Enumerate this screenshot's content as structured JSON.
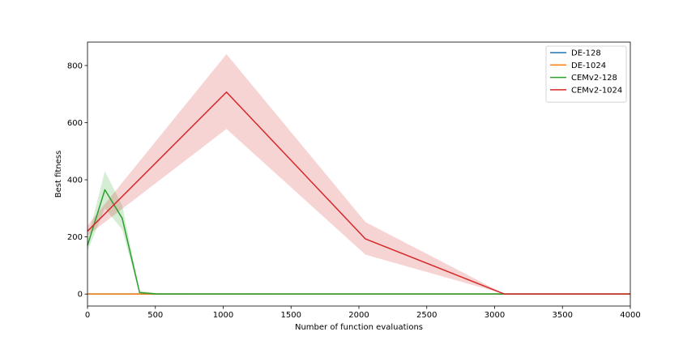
{
  "chart_data": {
    "type": "line",
    "title": "",
    "xlabel": "Number of function evaluations",
    "ylabel": "Best fitness",
    "xlim": [
      0,
      4000
    ],
    "ylim": [
      -42,
      882
    ],
    "xticks": [
      "0",
      "500",
      "1000",
      "1500",
      "2000",
      "2500",
      "3000",
      "3500",
      "4000"
    ],
    "yticks": [
      "0",
      "200",
      "400",
      "600",
      "800"
    ],
    "legend_position": "top-right",
    "grid": false,
    "series": [
      {
        "name": "DE-128",
        "color": "#1f77b4",
        "x": [
          0,
          4000
        ],
        "y": [
          0,
          0
        ],
        "lower": [
          0,
          0
        ],
        "upper": [
          0,
          0
        ]
      },
      {
        "name": "DE-1024",
        "color": "#ff7f0e",
        "x": [
          0,
          4000
        ],
        "y": [
          0,
          0
        ],
        "lower": [
          0,
          0
        ],
        "upper": [
          0,
          0
        ]
      },
      {
        "name": "CEMv2-128",
        "color": "#2ca02c",
        "x": [
          0,
          128,
          256,
          384,
          512,
          4000
        ],
        "y": [
          170,
          365,
          265,
          5,
          0,
          0
        ],
        "lower": [
          150,
          300,
          225,
          0,
          0,
          0
        ],
        "upper": [
          190,
          430,
          310,
          12,
          3,
          0
        ]
      },
      {
        "name": "CEMv2-1024",
        "color": "#d62728",
        "x": [
          0,
          1024,
          2048,
          3072,
          4000
        ],
        "y": [
          220,
          707,
          193,
          0,
          0
        ],
        "lower": [
          205,
          578,
          138,
          0,
          0
        ],
        "upper": [
          240,
          840,
          252,
          0,
          0
        ]
      }
    ]
  }
}
